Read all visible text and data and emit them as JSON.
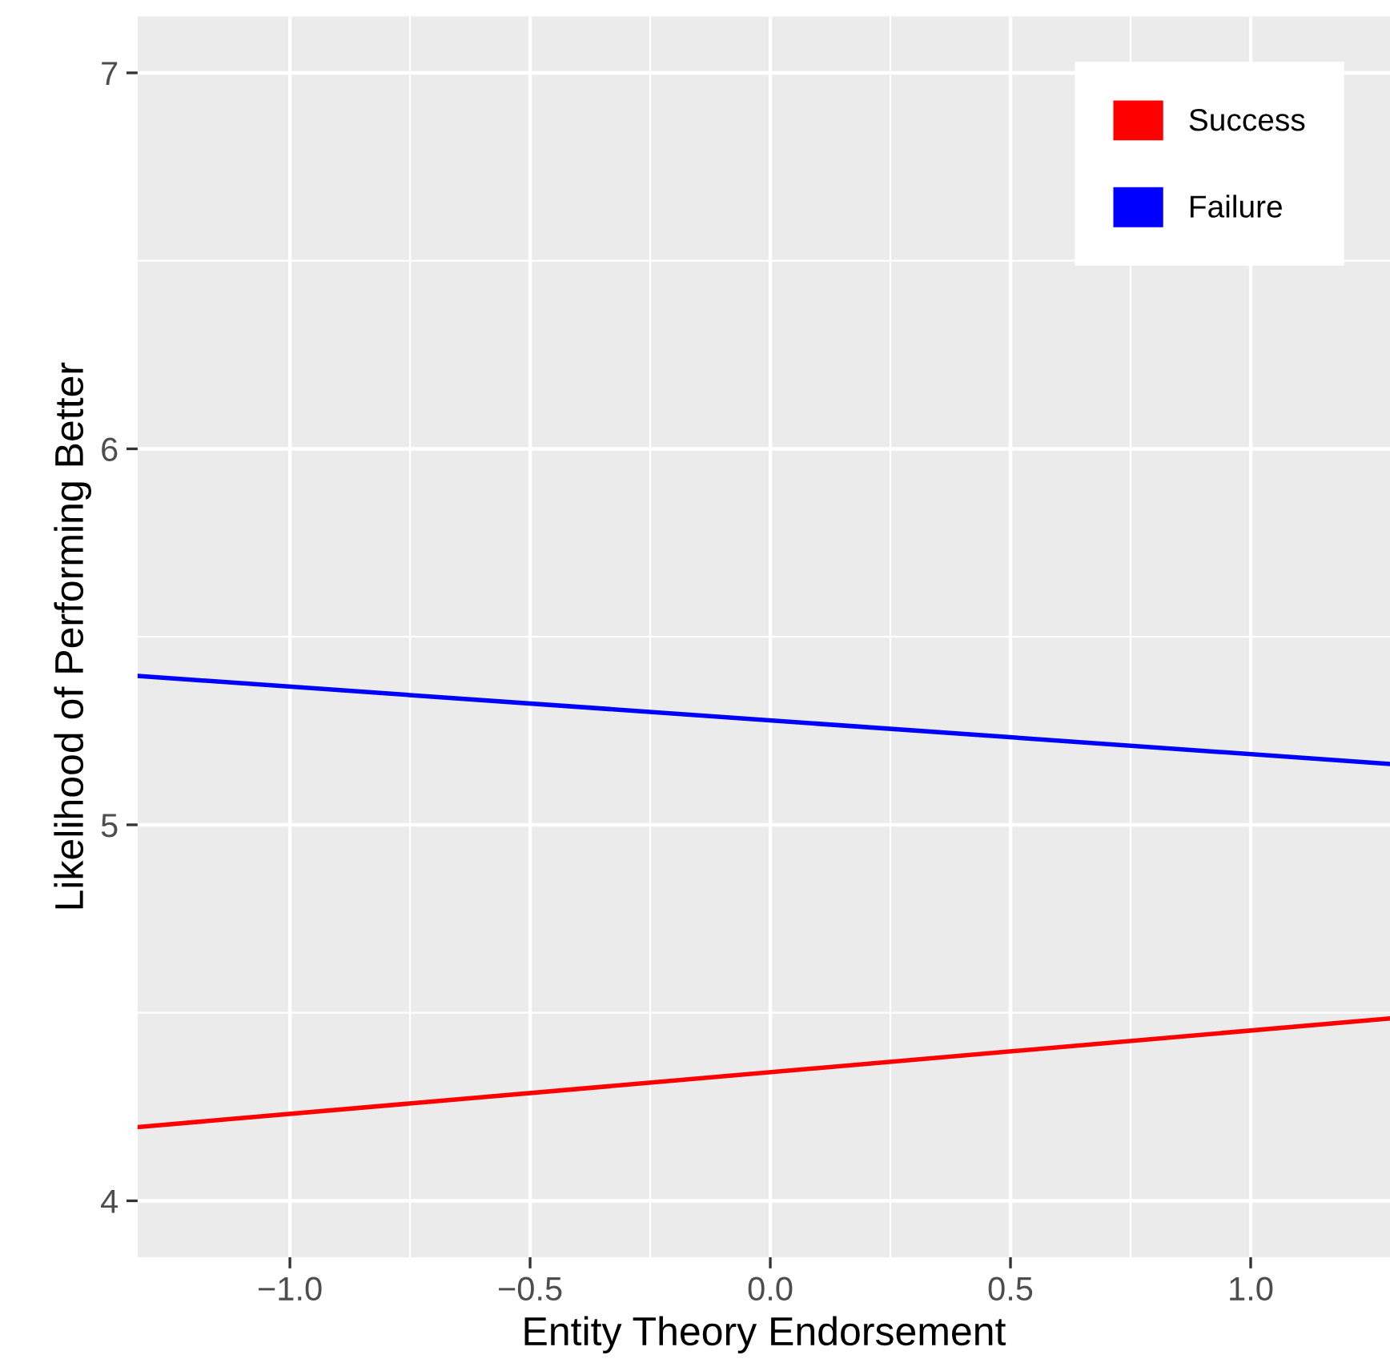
{
  "chart_data": {
    "type": "line",
    "xlabel": "Entity Theory Endorsement",
    "ylabel": "Likelihood of Performing Better",
    "x": [
      -1.317,
      1.29
    ],
    "series": [
      {
        "name": "Success",
        "color": "#ff0000",
        "values": [
          4.196,
          4.485
        ]
      },
      {
        "name": "Failure",
        "color": "#0000ff",
        "values": [
          5.396,
          5.162
        ]
      }
    ],
    "xlim": [
      -1.317,
      1.29
    ],
    "ylim": [
      3.85,
      7.15
    ],
    "xticks": [
      {
        "value": -1,
        "label": "−1.0"
      },
      {
        "value": -0.5,
        "label": "−0.5"
      },
      {
        "value": 0,
        "label": "0.0"
      },
      {
        "value": 0.5,
        "label": "0.5"
      },
      {
        "value": 1,
        "label": "1.0"
      }
    ],
    "yticks": [
      4,
      5,
      6,
      7
    ],
    "grid": true,
    "legend": "top right",
    "marker": "none",
    "line_style": "solid"
  }
}
